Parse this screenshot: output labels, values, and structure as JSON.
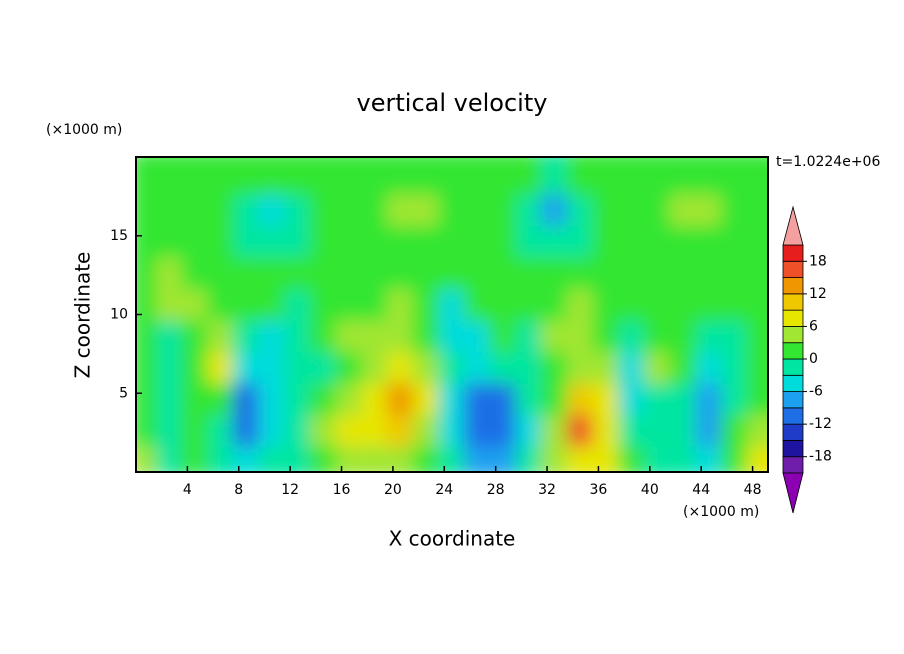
{
  "chart_data": {
    "type": "contour",
    "title": "vertical velocity",
    "x_label": "X coordinate",
    "y_label": "Z coordinate",
    "x_unit": "(×1000 m)",
    "y_unit": "(×1000 m)",
    "time_label": "t=1.0224e+06",
    "xlim": [
      0,
      49.2
    ],
    "ylim": [
      0,
      20
    ],
    "xticks": [
      4,
      8,
      12,
      16,
      20,
      24,
      28,
      32,
      36,
      40,
      44,
      48
    ],
    "yticks": [
      5,
      10,
      15
    ],
    "x": [
      1,
      3,
      5,
      7,
      9,
      11,
      13,
      15,
      17,
      19,
      21,
      23,
      25,
      27,
      29,
      31,
      33,
      35,
      37,
      39,
      41,
      43,
      45,
      47,
      49
    ],
    "y": [
      1,
      3,
      5,
      7,
      9,
      11,
      13,
      15,
      17,
      19
    ],
    "z": [
      [
        4,
        -1,
        0,
        -3,
        -6,
        -3,
        -2,
        2,
        5,
        4,
        5,
        1,
        -3,
        -7,
        -7,
        -3,
        3,
        8,
        6,
        0,
        -2,
        -2,
        -6,
        2,
        6
      ],
      [
        2,
        -1,
        0,
        -3,
        -10,
        -5,
        -2,
        4,
        7,
        8,
        10,
        4,
        -6,
        -12,
        -12,
        -4,
        4,
        15,
        8,
        -1,
        -3,
        -2,
        -9,
        1,
        4
      ],
      [
        0,
        -1,
        0,
        2,
        -12,
        -6,
        -2,
        2,
        5,
        8,
        12,
        6,
        -4,
        -10,
        -11,
        -3,
        2,
        10,
        6,
        -6,
        -1,
        -2,
        -7,
        -1,
        1
      ],
      [
        1,
        -2,
        0,
        6,
        -4,
        -6,
        -3,
        -1,
        2,
        4,
        7,
        4,
        -3,
        -6,
        -3,
        -1,
        1,
        5,
        3,
        -6,
        5,
        0,
        -5,
        -2,
        0
      ],
      [
        1,
        -1,
        2,
        4,
        -2,
        -4,
        -2,
        1,
        3,
        3,
        4,
        2,
        -6,
        -4,
        0,
        -2,
        3,
        4,
        2,
        -3,
        2,
        1,
        -2,
        -1,
        0
      ],
      [
        2,
        3,
        3,
        2,
        1,
        0,
        -1,
        1,
        2,
        2,
        3,
        2,
        -6,
        0,
        1,
        1,
        2,
        3,
        2,
        1,
        1,
        2,
        1,
        0,
        1
      ],
      [
        2,
        4,
        2,
        1,
        2,
        1,
        1,
        2,
        1,
        2,
        2,
        1,
        1,
        1,
        1,
        1,
        2,
        2,
        1,
        1,
        1,
        1,
        1,
        1,
        1
      ],
      [
        1,
        1,
        1,
        1,
        -1,
        -3,
        -2,
        1,
        1,
        1,
        1,
        1,
        1,
        1,
        1,
        -1,
        -3,
        -1,
        1,
        1,
        1,
        1,
        1,
        1,
        1
      ],
      [
        1,
        1,
        1,
        1,
        -2,
        -5,
        -3,
        0,
        1,
        2,
        3,
        3,
        2,
        1,
        1,
        -1,
        -8,
        -3,
        1,
        1,
        2,
        4,
        4,
        1,
        1
      ],
      [
        1,
        1,
        2,
        2,
        1,
        0,
        1,
        1,
        2,
        2,
        2,
        2,
        2,
        1,
        1,
        1,
        -1,
        1,
        1,
        1,
        1,
        2,
        2,
        1,
        1
      ]
    ],
    "colorbar": {
      "levels": [
        -21,
        -18,
        -15,
        -12,
        -9,
        -6,
        -3,
        0,
        3,
        6,
        9,
        12,
        15,
        18,
        21
      ],
      "colors": [
        "#6e1eaa",
        "#1e14a0",
        "#1e3cc8",
        "#1e6ee6",
        "#1ea0f0",
        "#00dcdc",
        "#00e6a0",
        "#32e632",
        "#a0e632",
        "#e6e600",
        "#f0c800",
        "#f09600",
        "#f05028",
        "#e61e1e"
      ],
      "under_color": "#8c00b4",
      "over_color": "#f5a0a0",
      "ticks": [
        -18,
        -12,
        -6,
        0,
        6,
        12,
        18
      ]
    }
  }
}
